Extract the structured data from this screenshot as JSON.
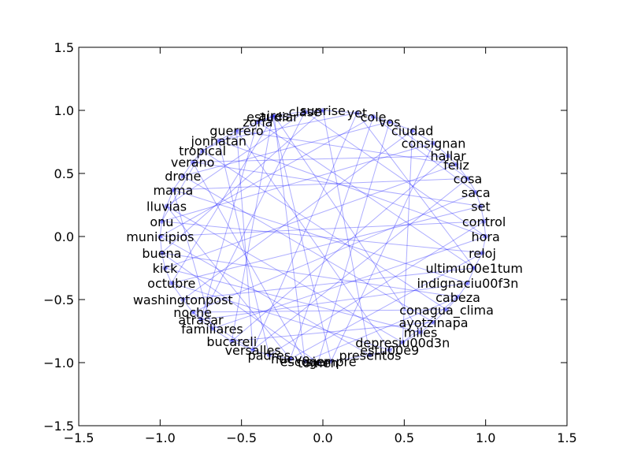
{
  "chart_data": {
    "type": "network",
    "title": "",
    "xlabel": "",
    "ylabel": "",
    "xlim": [
      -1.5,
      1.5
    ],
    "ylim": [
      -1.5,
      1.5
    ],
    "grid": false,
    "x_ticks": [
      -1.5,
      -1.0,
      -0.5,
      0.0,
      0.5,
      1.0,
      1.5
    ],
    "y_ticks": [
      -1.5,
      -1.0,
      -0.5,
      0.0,
      0.5,
      1.0,
      1.5
    ],
    "x_tick_labels": [
      "−1.5",
      "−1.0",
      "−0.5",
      "0.0",
      "0.5",
      "1.0",
      "1.5"
    ],
    "y_tick_labels": [
      "−1.5",
      "−1.0",
      "−0.5",
      "0.0",
      "0.5",
      "1.0",
      "1.5"
    ],
    "colors": {
      "edge": "#0000ff",
      "node": "#0000ff",
      "label": "#000000",
      "axes": "#000000"
    },
    "nodes": [
      {
        "label": "aires",
        "x": -0.3,
        "y": 0.96
      },
      {
        "label": "clase",
        "x": -0.11,
        "y": 0.99
      },
      {
        "label": "sunrise",
        "x": 0.0,
        "y": 1.0
      },
      {
        "label": "yet",
        "x": 0.21,
        "y": 0.98
      },
      {
        "label": "cole",
        "x": 0.31,
        "y": 0.95
      },
      {
        "label": "vos",
        "x": 0.41,
        "y": 0.91
      },
      {
        "label": "ciudad",
        "x": 0.55,
        "y": 0.84
      },
      {
        "label": "consignan",
        "x": 0.68,
        "y": 0.74
      },
      {
        "label": "hallar",
        "x": 0.77,
        "y": 0.64
      },
      {
        "label": "feliz",
        "x": 0.82,
        "y": 0.57
      },
      {
        "label": "cosa",
        "x": 0.89,
        "y": 0.46
      },
      {
        "label": "saca",
        "x": 0.94,
        "y": 0.35
      },
      {
        "label": "set",
        "x": 0.97,
        "y": 0.24
      },
      {
        "label": "control",
        "x": 0.99,
        "y": 0.12
      },
      {
        "label": "hora",
        "x": 1.0,
        "y": 0.0
      },
      {
        "label": "reloj",
        "x": 0.98,
        "y": -0.13
      },
      {
        "label": "ultimu00e1tum",
        "x": 0.93,
        "y": -0.25
      },
      {
        "label": "indignaciu00f3n",
        "x": 0.89,
        "y": -0.37
      },
      {
        "label": "cabeza",
        "x": 0.83,
        "y": -0.48
      },
      {
        "label": "conagua_clima",
        "x": 0.76,
        "y": -0.58
      },
      {
        "label": "ayotzinapa",
        "x": 0.68,
        "y": -0.68
      },
      {
        "label": "miles",
        "x": 0.6,
        "y": -0.76
      },
      {
        "label": "depresiu00d3n",
        "x": 0.49,
        "y": -0.84
      },
      {
        "label": "estu00e9",
        "x": 0.41,
        "y": -0.9
      },
      {
        "label": "presentos",
        "x": 0.29,
        "y": -0.94
      },
      {
        "label": "siempre",
        "x": 0.05,
        "y": -0.99
      },
      {
        "label": "tomen",
        "x": -0.03,
        "y": -1.0
      },
      {
        "label": "escoger",
        "x": -0.11,
        "y": -0.99
      },
      {
        "label": "nuevo",
        "x": -0.2,
        "y": -0.97
      },
      {
        "label": "padres",
        "x": -0.33,
        "y": -0.94
      },
      {
        "label": "versalles",
        "x": -0.43,
        "y": -0.9
      },
      {
        "label": "bucareli",
        "x": -0.56,
        "y": -0.83
      },
      {
        "label": "familiares",
        "x": -0.68,
        "y": -0.73
      },
      {
        "label": "atrasar",
        "x": -0.75,
        "y": -0.66
      },
      {
        "label": "noche",
        "x": -0.8,
        "y": -0.6
      },
      {
        "label": "washingtonpost",
        "x": -0.86,
        "y": -0.5
      },
      {
        "label": "octubre",
        "x": -0.93,
        "y": -0.37
      },
      {
        "label": "kick",
        "x": -0.97,
        "y": -0.25
      },
      {
        "label": "buena",
        "x": -0.99,
        "y": -0.13
      },
      {
        "label": "municipios",
        "x": -1.0,
        "y": 0.0
      },
      {
        "label": "onu",
        "x": -0.99,
        "y": 0.12
      },
      {
        "label": "lluvias",
        "x": -0.96,
        "y": 0.24
      },
      {
        "label": "mama",
        "x": -0.92,
        "y": 0.37
      },
      {
        "label": "drone",
        "x": -0.86,
        "y": 0.48
      },
      {
        "label": "verano",
        "x": -0.8,
        "y": 0.59
      },
      {
        "label": "tropical",
        "x": -0.74,
        "y": 0.68
      },
      {
        "label": "jonnatan",
        "x": -0.64,
        "y": 0.76
      },
      {
        "label": "guerrero",
        "x": -0.53,
        "y": 0.84
      },
      {
        "label": "zona",
        "x": -0.4,
        "y": 0.91
      },
      {
        "label": "estudiar",
        "x": -0.31,
        "y": 0.95
      }
    ],
    "edges": [
      [
        0,
        36
      ],
      [
        0,
        45
      ],
      [
        0,
        27
      ],
      [
        0,
        21
      ],
      [
        1,
        33
      ],
      [
        1,
        14
      ],
      [
        1,
        41
      ],
      [
        2,
        24
      ],
      [
        2,
        38
      ],
      [
        3,
        16
      ],
      [
        3,
        30
      ],
      [
        3,
        46
      ],
      [
        4,
        11
      ],
      [
        4,
        28
      ],
      [
        4,
        39
      ],
      [
        5,
        26
      ],
      [
        5,
        43
      ],
      [
        6,
        22
      ],
      [
        6,
        35
      ],
      [
        7,
        25
      ],
      [
        7,
        40
      ],
      [
        8,
        31
      ],
      [
        8,
        44
      ],
      [
        9,
        37
      ],
      [
        9,
        47
      ],
      [
        10,
        30
      ],
      [
        10,
        42
      ],
      [
        11,
        34
      ],
      [
        12,
        36
      ],
      [
        12,
        44
      ],
      [
        13,
        29
      ],
      [
        13,
        39
      ],
      [
        14,
        32
      ],
      [
        14,
        46
      ],
      [
        15,
        28
      ],
      [
        15,
        40
      ],
      [
        16,
        35
      ],
      [
        16,
        48
      ],
      [
        17,
        33
      ],
      [
        17,
        42
      ],
      [
        18,
        27
      ],
      [
        18,
        38
      ],
      [
        19,
        34
      ],
      [
        19,
        45
      ],
      [
        20,
        31
      ],
      [
        20,
        43
      ],
      [
        21,
        37
      ],
      [
        22,
        41
      ],
      [
        23,
        36
      ],
      [
        23,
        47
      ],
      [
        24,
        39
      ],
      [
        25,
        49
      ],
      [
        26,
        38
      ],
      [
        27,
        44
      ],
      [
        28,
        41
      ],
      [
        29,
        46
      ],
      [
        30,
        47
      ],
      [
        31,
        49
      ],
      [
        32,
        42
      ],
      [
        33,
        48
      ],
      [
        0,
        1
      ],
      [
        1,
        2
      ],
      [
        2,
        3
      ],
      [
        3,
        4
      ],
      [
        4,
        5
      ],
      [
        5,
        6
      ],
      [
        6,
        7
      ],
      [
        7,
        8
      ],
      [
        8,
        9
      ],
      [
        9,
        10
      ],
      [
        10,
        11
      ],
      [
        11,
        12
      ],
      [
        12,
        13
      ],
      [
        13,
        14
      ],
      [
        14,
        15
      ],
      [
        15,
        16
      ],
      [
        16,
        17
      ],
      [
        17,
        18
      ],
      [
        18,
        19
      ],
      [
        19,
        20
      ],
      [
        20,
        21
      ],
      [
        21,
        22
      ],
      [
        22,
        23
      ],
      [
        23,
        24
      ],
      [
        24,
        25
      ],
      [
        25,
        26
      ],
      [
        26,
        27
      ],
      [
        27,
        28
      ],
      [
        28,
        29
      ],
      [
        29,
        30
      ],
      [
        30,
        31
      ],
      [
        31,
        32
      ],
      [
        32,
        33
      ],
      [
        33,
        34
      ],
      [
        34,
        35
      ],
      [
        35,
        36
      ],
      [
        36,
        37
      ],
      [
        37,
        38
      ],
      [
        38,
        39
      ],
      [
        39,
        40
      ],
      [
        40,
        41
      ],
      [
        41,
        42
      ],
      [
        42,
        43
      ],
      [
        43,
        44
      ],
      [
        44,
        45
      ],
      [
        45,
        46
      ],
      [
        46,
        47
      ],
      [
        47,
        48
      ],
      [
        48,
        49
      ],
      [
        49,
        0
      ],
      [
        2,
        48
      ],
      [
        5,
        10
      ],
      [
        18,
        22
      ],
      [
        30,
        34
      ],
      [
        40,
        45
      ]
    ]
  }
}
